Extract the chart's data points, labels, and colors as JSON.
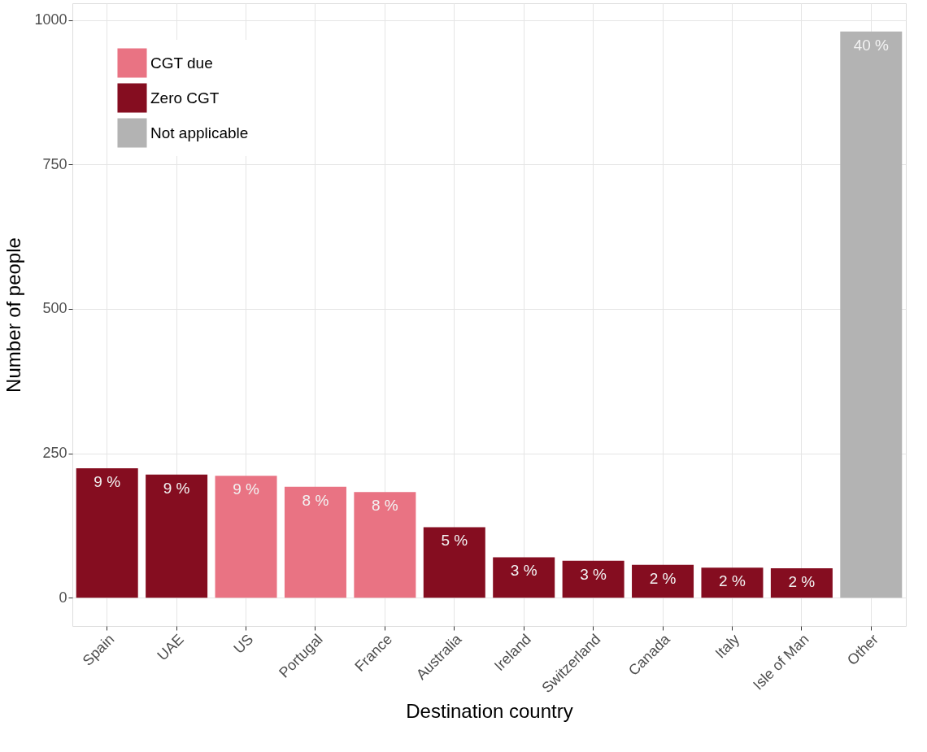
{
  "chart_data": {
    "type": "bar",
    "xlabel": "Destination country",
    "ylabel": "Number of people",
    "categories": [
      "Spain",
      "UAE",
      "US",
      "Portugal",
      "France",
      "Australia",
      "Ireland",
      "Switzerland",
      "Canada",
      "Italy",
      "Isle of Man",
      "Other"
    ],
    "series": [
      {
        "name": "CGT due",
        "color": "#e97383",
        "values": [
          null,
          null,
          211,
          192,
          183,
          null,
          null,
          null,
          null,
          null,
          null,
          null
        ]
      },
      {
        "name": "Zero CGT",
        "color": "#850d20",
        "values": [
          224,
          213,
          null,
          null,
          null,
          122,
          70,
          64,
          57,
          52,
          51,
          null
        ]
      },
      {
        "name": "Not applicable",
        "color": "#b3b3b3",
        "values": [
          null,
          null,
          null,
          null,
          null,
          null,
          null,
          null,
          null,
          null,
          null,
          980
        ]
      }
    ],
    "value_labels": [
      "9 %",
      "9 %",
      "9 %",
      "8 %",
      "8 %",
      "5 %",
      "3 %",
      "3 %",
      "2 %",
      "2 %",
      "2 %",
      "40 %"
    ],
    "ylim": [
      -49,
      1029
    ],
    "yticks": [
      0,
      250,
      500,
      750,
      1000
    ],
    "grid": true,
    "legend": "top left"
  }
}
